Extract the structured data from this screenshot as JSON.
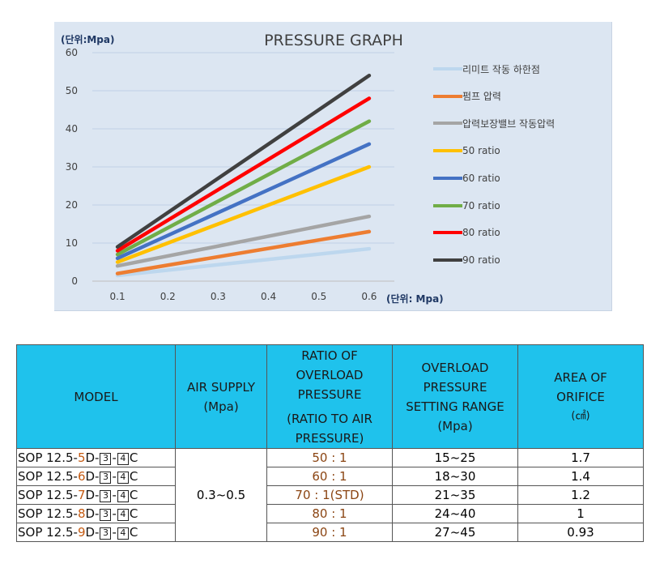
{
  "chart_data": {
    "type": "line",
    "title": "PRESSURE GRAPH",
    "ylabel": "(단위:Mpa)",
    "xlabel": "(단위: Mpa)",
    "x": [
      0.1,
      0.6
    ],
    "x_ticks": [
      "0.1",
      "0.2",
      "0.3",
      "0.4",
      "0.5",
      "0.6"
    ],
    "y_ticks": [
      "0",
      "10",
      "20",
      "30",
      "40",
      "50",
      "60"
    ],
    "xlim": [
      0.05,
      0.65
    ],
    "ylim": [
      0,
      60
    ],
    "grid": "horizontal",
    "legend_position": "right",
    "series": [
      {
        "name": "리미트 작동 하한점",
        "color": "#bdd7ee",
        "values": [
          1.5,
          8.5
        ]
      },
      {
        "name": "펌프 압력",
        "color": "#ed7d31",
        "values": [
          2,
          13
        ]
      },
      {
        "name": "압력보장밸브 작동압력",
        "color": "#a5a5a5",
        "values": [
          4,
          17
        ]
      },
      {
        "name": "50 ratio",
        "color": "#ffc000",
        "values": [
          5,
          30
        ]
      },
      {
        "name": "60 ratio",
        "color": "#4472c4",
        "values": [
          6,
          36
        ]
      },
      {
        "name": "70 ratio",
        "color": "#70ad47",
        "values": [
          7,
          42
        ]
      },
      {
        "name": "80 ratio",
        "color": "#ff0000",
        "values": [
          8,
          48
        ]
      },
      {
        "name": "90 ratio",
        "color": "#404040",
        "values": [
          9,
          54
        ]
      }
    ]
  },
  "table": {
    "headers": {
      "model": "MODEL",
      "air_supply_1": "AIR SUPPLY",
      "air_supply_2": "(Mpa)",
      "ratio_1": "RATIO OF",
      "ratio_2": "OVERLOAD",
      "ratio_3": "PRESSURE",
      "ratio_4": "(RATIO TO AIR",
      "ratio_5": "PRESSURE)",
      "range_1": "OVERLOAD",
      "range_2": "PRESSURE",
      "range_3": "SETTING RANGE",
      "range_4": "(Mpa)",
      "area_1": "AREA OF",
      "area_2": "ORIFICE",
      "area_3": "(㎠)"
    },
    "air_supply": "0.3~0.5",
    "rows": [
      {
        "model_prefix": "SOP 12.5-",
        "model_num": "5",
        "model_d": "D-",
        "box1": "3",
        "dash": "-",
        "box2": "4",
        "suffix": "C",
        "ratio": "50 : 1",
        "range": "15~25",
        "area": "1.7"
      },
      {
        "model_prefix": "SOP 12.5-",
        "model_num": "6",
        "model_d": "D-",
        "box1": "3",
        "dash": "-",
        "box2": "4",
        "suffix": "C",
        "ratio": "60 : 1",
        "range": "18~30",
        "area": "1.4"
      },
      {
        "model_prefix": "SOP 12.5-",
        "model_num": "7",
        "model_d": "D-",
        "box1": "3",
        "dash": "-",
        "box2": "4",
        "suffix": "C",
        "ratio": "70 : 1(STD)",
        "range": "21~35",
        "area": "1.2"
      },
      {
        "model_prefix": "SOP 12.5-",
        "model_num": "8",
        "model_d": "D-",
        "box1": "3",
        "dash": "-",
        "box2": "4",
        "suffix": "C",
        "ratio": "80 : 1",
        "range": "24~40",
        "area": "1"
      },
      {
        "model_prefix": "SOP 12.5-",
        "model_num": "9",
        "model_d": "D-",
        "box1": "3",
        "dash": "-",
        "box2": "4",
        "suffix": "C",
        "ratio": "90 : 1",
        "range": "27~45",
        "area": "0.93"
      }
    ]
  }
}
